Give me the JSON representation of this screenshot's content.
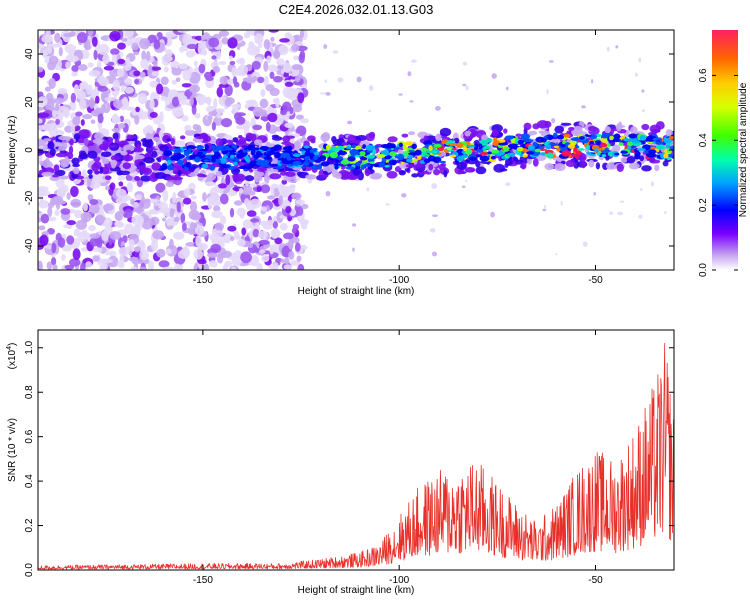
{
  "title": "C2E4.2026.032.01.13.G03",
  "chart_data": [
    {
      "type": "heatmap",
      "xlabel": "Height of straight line (km)",
      "ylabel": "Frequency (Hz)",
      "xlim": [
        -192,
        -30
      ],
      "ylim": [
        -50,
        50
      ],
      "xticks": [
        -150,
        -100,
        -50
      ],
      "yticks": [
        -40,
        -20,
        0,
        20,
        40
      ],
      "colorbar": {
        "label": "Normalized spectral amplitude",
        "range": [
          0,
          0.74
        ],
        "ticks": [
          0.0,
          0.2,
          0.4,
          0.6
        ]
      }
    },
    {
      "type": "line",
      "xlabel": "Height of straight line (km)",
      "ylabel": "SNR (10 * v/v)",
      "y_scale_label": "(x10",
      "y_scale_exp": "4",
      "xlim": [
        -192,
        -30
      ],
      "ylim": [
        0,
        1.08
      ],
      "xticks": [
        -150,
        -100,
        -50
      ],
      "yticks": [
        0.0,
        0.2,
        0.4,
        0.6,
        0.8,
        1.0
      ],
      "series_color": "#e8302a",
      "envelope": [
        {
          "x": -192,
          "y": 0.02
        },
        {
          "x": -150,
          "y": 0.03
        },
        {
          "x": -130,
          "y": 0.03
        },
        {
          "x": -120,
          "y": 0.05
        },
        {
          "x": -110,
          "y": 0.08
        },
        {
          "x": -105,
          "y": 0.12
        },
        {
          "x": -100,
          "y": 0.25
        },
        {
          "x": -95,
          "y": 0.38
        },
        {
          "x": -90,
          "y": 0.45
        },
        {
          "x": -85,
          "y": 0.48
        },
        {
          "x": -80,
          "y": 0.5
        },
        {
          "x": -75,
          "y": 0.4
        },
        {
          "x": -70,
          "y": 0.3
        },
        {
          "x": -65,
          "y": 0.22
        },
        {
          "x": -60,
          "y": 0.3
        },
        {
          "x": -55,
          "y": 0.45
        },
        {
          "x": -50,
          "y": 0.55
        },
        {
          "x": -45,
          "y": 0.5
        },
        {
          "x": -40,
          "y": 0.65
        },
        {
          "x": -35,
          "y": 0.85
        },
        {
          "x": -32,
          "y": 1.05
        },
        {
          "x": -30,
          "y": 0.7
        }
      ]
    }
  ]
}
